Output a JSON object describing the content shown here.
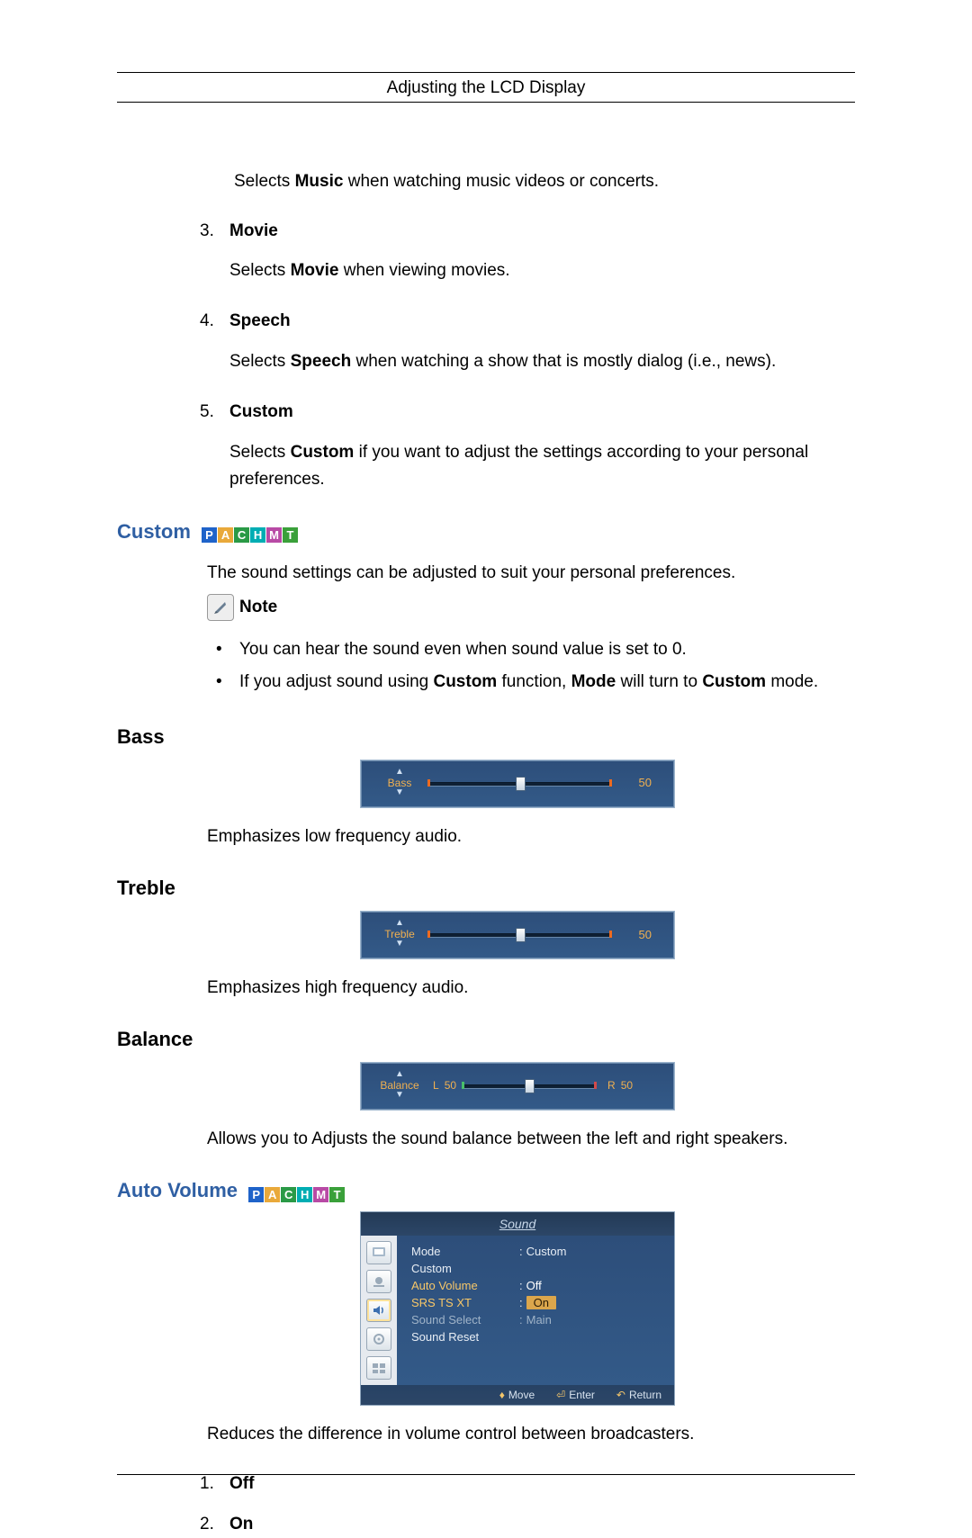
{
  "header": {
    "title": "Adjusting the LCD Display"
  },
  "intro_music": {
    "pre": "Selects ",
    "bold": "Music",
    "post": " when watching music videos or concerts."
  },
  "modes": [
    {
      "n": "3.",
      "label": "Movie",
      "desc_pre": "Selects ",
      "desc_bold": "Movie",
      "desc_post": " when viewing movies."
    },
    {
      "n": "4.",
      "label": "Speech",
      "desc_pre": "Selects ",
      "desc_bold": "Speech",
      "desc_post": " when watching a show that is mostly dialog (i.e., news)."
    },
    {
      "n": "5.",
      "label": "Custom",
      "desc_pre": "Selects ",
      "desc_bold": "Custom",
      "desc_post": " if you want to adjust the settings according to your personal preferences."
    }
  ],
  "pachmt": {
    "letters": [
      "P",
      "A",
      "C",
      "H",
      "M",
      "T"
    ],
    "colors": [
      "#1f63c9",
      "#e9a93a",
      "#2a9a46",
      "#00adb3",
      "#b84aa5",
      "#3aa03a"
    ]
  },
  "custom": {
    "heading": "Custom",
    "intro": "The sound settings can be adjusted to suit your personal preferences.",
    "note_label": "Note",
    "bullets": [
      {
        "text": "You can hear the sound even when sound value is set to 0."
      },
      {
        "pre": "If you adjust sound using ",
        "b1": "Custom",
        "mid": " function, ",
        "b2": "Mode",
        "mid2": " will turn to ",
        "b3": "Custom",
        "post": " mode."
      }
    ]
  },
  "bass": {
    "heading": "Bass",
    "label": "Bass",
    "value": 50,
    "pct": "50%",
    "desc": "Emphasizes low frequency audio."
  },
  "treble": {
    "heading": "Treble",
    "label": "Treble",
    "value": 50,
    "pct": "50%",
    "desc": "Emphasizes high frequency audio."
  },
  "balance": {
    "heading": "Balance",
    "label": "Balance",
    "left_label": "L",
    "left_val": 50,
    "right_label": "R",
    "right_val": 50,
    "pct": "50%",
    "desc": "Allows you to Adjusts the sound balance between the left and right speakers.",
    "stop_left_color": "#49c06a",
    "stop_right_color": "#d34a4a"
  },
  "auto_volume": {
    "heading": "Auto Volume",
    "desc": "Reduces the difference in volume control between broadcasters.",
    "options": [
      {
        "n": "1.",
        "label": "Off"
      },
      {
        "n": "2.",
        "label": "On"
      }
    ],
    "osd_title": "Sound",
    "menu": [
      {
        "k": "Mode",
        "v": "Custom",
        "style": "normal"
      },
      {
        "k": "Custom",
        "v": "",
        "style": "normal"
      },
      {
        "k": "Auto Volume",
        "v": "Off",
        "style": "hi_off"
      },
      {
        "k": "SRS TS XT",
        "v": "On",
        "style": "hi_on"
      },
      {
        "k": "Sound Select",
        "v": "Main",
        "style": "dim"
      },
      {
        "k": "Sound Reset",
        "v": "",
        "style": "normal"
      }
    ],
    "footer": {
      "move": "Move",
      "enter": "Enter",
      "ret": "Return"
    }
  },
  "colors": {
    "heading_blue": "#2f5fa3",
    "slider_bg_top": "#2d4e7a",
    "slider_bg_bot": "#335a88",
    "slider_accent": "#f0b050",
    "pill_bg": "#dba64c"
  }
}
